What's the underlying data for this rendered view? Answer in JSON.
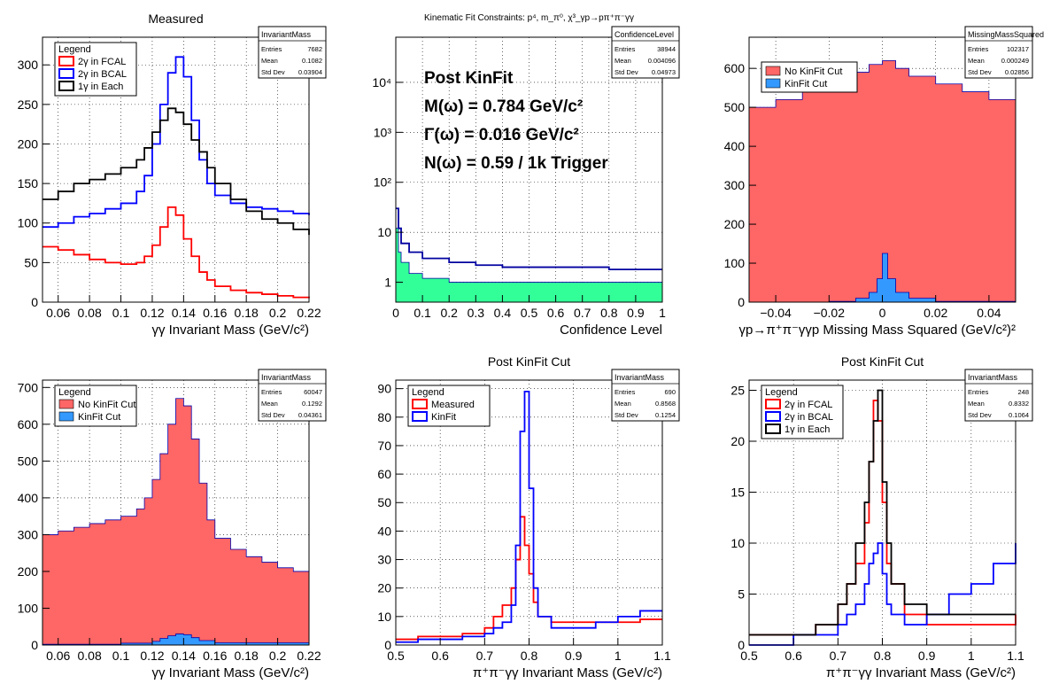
{
  "chart_data": [
    {
      "type": "histogram",
      "title": "Measured",
      "xlabel": "γγ Invariant Mass (GeV/c²)",
      "ylabel": "",
      "xlim": [
        0.05,
        0.22
      ],
      "ylim": [
        0,
        335
      ],
      "xticks": [
        "0.06",
        "0.08",
        "0.1",
        "0.12",
        "0.14",
        "0.16",
        "0.18",
        "0.2",
        "0.22"
      ],
      "yticks": [
        "0",
        "50",
        "100",
        "150",
        "200",
        "250",
        "300"
      ],
      "stats": {
        "name": "InvariantMass",
        "entries": "7682",
        "mean": "0.1082",
        "std": "0.03904"
      },
      "legend": {
        "title": "Legend",
        "position": "top-left"
      },
      "series": [
        {
          "name": "2γ in FCAL",
          "color": "#ff0000",
          "fill": false,
          "x": [
            0.05,
            0.06,
            0.07,
            0.08,
            0.09,
            0.1,
            0.11,
            0.115,
            0.12,
            0.125,
            0.13,
            0.135,
            0.14,
            0.145,
            0.15,
            0.155,
            0.16,
            0.17,
            0.18,
            0.19,
            0.2,
            0.21,
            0.22
          ],
          "y": [
            70,
            66,
            60,
            54,
            50,
            48,
            50,
            58,
            72,
            95,
            120,
            110,
            80,
            58,
            38,
            28,
            20,
            15,
            12,
            10,
            8,
            6,
            5
          ]
        },
        {
          "name": "2γ in BCAL",
          "color": "#0000ff",
          "fill": false,
          "x": [
            0.05,
            0.06,
            0.07,
            0.08,
            0.09,
            0.1,
            0.11,
            0.115,
            0.12,
            0.125,
            0.13,
            0.135,
            0.14,
            0.145,
            0.15,
            0.155,
            0.16,
            0.17,
            0.18,
            0.19,
            0.2,
            0.21,
            0.22
          ],
          "y": [
            95,
            100,
            108,
            112,
            118,
            125,
            140,
            160,
            200,
            250,
            290,
            310,
            285,
            230,
            180,
            150,
            135,
            125,
            120,
            118,
            115,
            112,
            110
          ]
        },
        {
          "name": "1γ in Each",
          "color": "#000000",
          "fill": false,
          "x": [
            0.05,
            0.06,
            0.07,
            0.08,
            0.09,
            0.1,
            0.11,
            0.115,
            0.12,
            0.125,
            0.13,
            0.135,
            0.14,
            0.145,
            0.15,
            0.155,
            0.16,
            0.17,
            0.18,
            0.19,
            0.2,
            0.21,
            0.22
          ],
          "y": [
            130,
            140,
            150,
            155,
            162,
            170,
            180,
            195,
            215,
            230,
            245,
            240,
            225,
            205,
            190,
            170,
            150,
            130,
            115,
            105,
            100,
            92,
            85
          ]
        }
      ]
    },
    {
      "type": "histogram",
      "title": "Kinematic Fit Constraints: p⁴, m_π⁰, χ³_γp→pπ⁺π⁻γγ",
      "xlabel": "Confidence Level",
      "ylabel": "",
      "logy": true,
      "xlim": [
        0,
        1
      ],
      "ylim": [
        0.4,
        80000
      ],
      "xticks": [
        "0",
        "0.1",
        "0.2",
        "0.3",
        "0.4",
        "0.5",
        "0.6",
        "0.7",
        "0.8",
        "0.9",
        "1"
      ],
      "yticks": [
        "1",
        "10",
        "10²",
        "10³",
        "10⁴"
      ],
      "stats": {
        "name": "ConfidenceLevel",
        "entries": "38944",
        "mean": "0.004096",
        "std": "0.04973"
      },
      "annotations": [
        "Post KinFit",
        "M(ω) = 0.784 GeV/c²",
        "Γ(ω) = 0.016 GeV/c²",
        "N(ω) = 0.59 / 1k Trigger"
      ],
      "series": [
        {
          "name": "",
          "color": "#0000a0",
          "fill": false,
          "x": [
            0,
            0.01,
            0.02,
            0.05,
            0.1,
            0.2,
            0.3,
            0.4,
            0.5,
            0.6,
            0.7,
            0.8,
            0.9,
            1.0
          ],
          "y": [
            30,
            12,
            6,
            4,
            3,
            2.5,
            2.2,
            2,
            2,
            2,
            2,
            1.8,
            1.8,
            1.8
          ]
        },
        {
          "name": "",
          "color": "#33ff99",
          "fill": true,
          "x": [
            0,
            0.01,
            0.02,
            0.05,
            0.1,
            0.2,
            0.3,
            0.4,
            0.5,
            0.6,
            0.7,
            0.8,
            0.9,
            1.0
          ],
          "y": [
            12,
            4,
            2.5,
            1.5,
            1.2,
            1,
            1,
            1,
            1,
            1,
            1,
            1,
            1,
            1
          ]
        }
      ]
    },
    {
      "type": "histogram",
      "title": "",
      "xlabel": "γp→π⁺π⁻γγp Missing Mass Squared (GeV/c²)²",
      "ylabel": "",
      "xlim": [
        -0.05,
        0.05
      ],
      "ylim": [
        0,
        680
      ],
      "xticks": [
        "−0.04",
        "−0.02",
        "0",
        "0.02",
        "0.04"
      ],
      "yticks": [
        "0",
        "100",
        "200",
        "300",
        "400",
        "500",
        "600"
      ],
      "stats": {
        "name": "MissingMassSquared",
        "entries": "102317",
        "mean": "0.000249",
        "std": "0.02856"
      },
      "legend": {
        "title": "",
        "position": "top-left"
      },
      "series": [
        {
          "name": "No KinFit Cut",
          "color": "#ff6666",
          "fill": true,
          "x": [
            -0.05,
            -0.04,
            -0.03,
            -0.02,
            -0.01,
            -0.005,
            0,
            0.005,
            0.01,
            0.02,
            0.03,
            0.04,
            0.05
          ],
          "y": [
            500,
            520,
            540,
            560,
            590,
            610,
            620,
            600,
            580,
            560,
            540,
            520,
            500
          ]
        },
        {
          "name": "KinFit Cut",
          "color": "#3399ff",
          "fill": true,
          "x": [
            -0.05,
            -0.02,
            -0.01,
            -0.005,
            -0.002,
            0,
            0.002,
            0.005,
            0.01,
            0.02,
            0.05
          ],
          "y": [
            0,
            2,
            10,
            25,
            60,
            125,
            60,
            25,
            10,
            2,
            0
          ]
        }
      ]
    },
    {
      "type": "histogram",
      "title": "",
      "xlabel": "γγ Invariant Mass (GeV/c²)",
      "ylabel": "",
      "xlim": [
        0.05,
        0.22
      ],
      "ylim": [
        0,
        720
      ],
      "xticks": [
        "0.06",
        "0.08",
        "0.1",
        "0.12",
        "0.14",
        "0.16",
        "0.18",
        "0.2",
        "0.22"
      ],
      "yticks": [
        "0",
        "100",
        "200",
        "300",
        "400",
        "500",
        "600",
        "700"
      ],
      "stats": {
        "name": "InvariantMass",
        "entries": "60047",
        "mean": "0.1292",
        "std": "0.04361"
      },
      "legend": {
        "title": "Legend",
        "position": "top-left"
      },
      "series": [
        {
          "name": "No KinFit Cut",
          "color": "#ff6666",
          "fill": true,
          "x": [
            0.05,
            0.06,
            0.07,
            0.08,
            0.09,
            0.1,
            0.11,
            0.115,
            0.12,
            0.125,
            0.13,
            0.135,
            0.14,
            0.145,
            0.15,
            0.155,
            0.16,
            0.17,
            0.18,
            0.19,
            0.2,
            0.21,
            0.22
          ],
          "y": [
            300,
            310,
            320,
            330,
            340,
            350,
            370,
            400,
            450,
            520,
            600,
            670,
            650,
            560,
            440,
            340,
            290,
            260,
            240,
            225,
            210,
            200,
            190
          ]
        },
        {
          "name": "KinFit Cut",
          "color": "#3399ff",
          "fill": true,
          "x": [
            0.05,
            0.1,
            0.12,
            0.125,
            0.13,
            0.135,
            0.14,
            0.145,
            0.15,
            0.16,
            0.22
          ],
          "y": [
            2,
            5,
            10,
            18,
            25,
            30,
            28,
            20,
            12,
            6,
            3
          ]
        }
      ]
    },
    {
      "type": "histogram",
      "title": "Post KinFit Cut",
      "xlabel": "π⁺π⁻γγ Invariant Mass (GeV/c²)",
      "ylabel": "",
      "xlim": [
        0.5,
        1.1
      ],
      "ylim": [
        0,
        93
      ],
      "xticks": [
        "0.5",
        "0.6",
        "0.7",
        "0.8",
        "0.9",
        "1",
        "1.1"
      ],
      "yticks": [
        "0",
        "10",
        "20",
        "30",
        "40",
        "50",
        "60",
        "70",
        "80",
        "90"
      ],
      "stats": {
        "name": "InvariantMass",
        "entries": "690",
        "mean": "0.8568",
        "std": "0.1254"
      },
      "legend": {
        "title": "Legend",
        "position": "top-left"
      },
      "series": [
        {
          "name": "Measured",
          "color": "#ff0000",
          "fill": false,
          "x": [
            0.5,
            0.55,
            0.6,
            0.65,
            0.7,
            0.72,
            0.74,
            0.76,
            0.77,
            0.78,
            0.79,
            0.8,
            0.81,
            0.82,
            0.85,
            0.9,
            0.95,
            1.0,
            1.05,
            1.1
          ],
          "y": [
            2,
            3,
            3,
            4,
            6,
            10,
            14,
            20,
            30,
            45,
            35,
            25,
            15,
            10,
            8,
            8,
            8,
            8,
            9,
            9
          ]
        },
        {
          "name": "KinFit",
          "color": "#0000ff",
          "fill": false,
          "x": [
            0.5,
            0.55,
            0.6,
            0.65,
            0.7,
            0.72,
            0.74,
            0.76,
            0.77,
            0.78,
            0.79,
            0.8,
            0.81,
            0.82,
            0.85,
            0.9,
            0.95,
            1.0,
            1.05,
            1.1
          ],
          "y": [
            1,
            2,
            2,
            3,
            4,
            6,
            8,
            14,
            35,
            75,
            89,
            55,
            20,
            10,
            6,
            6,
            8,
            10,
            12,
            12
          ]
        }
      ]
    },
    {
      "type": "histogram",
      "title": "Post KinFit Cut",
      "xlabel": "π⁺π⁻γγ Invariant Mass (GeV/c²)",
      "ylabel": "",
      "xlim": [
        0.5,
        1.1
      ],
      "ylim": [
        0,
        26
      ],
      "xticks": [
        "0.5",
        "0.6",
        "0.7",
        "0.8",
        "0.9",
        "1",
        "1.1"
      ],
      "yticks": [
        "0",
        "5",
        "10",
        "15",
        "20",
        "25"
      ],
      "stats": {
        "name": "InvariantMass",
        "entries": "248",
        "mean": "0.8332",
        "std": "0.1064"
      },
      "legend": {
        "title": "Legend",
        "position": "top-left"
      },
      "series": [
        {
          "name": "2γ in FCAL",
          "color": "#ff0000",
          "fill": false,
          "x": [
            0.5,
            0.55,
            0.6,
            0.65,
            0.7,
            0.72,
            0.74,
            0.76,
            0.77,
            0.78,
            0.79,
            0.8,
            0.81,
            0.82,
            0.85,
            0.9,
            0.95,
            1.0,
            1.05,
            1.1
          ],
          "y": [
            1,
            1,
            1,
            2,
            4,
            6,
            8,
            12,
            18,
            24,
            22,
            14,
            8,
            6,
            3,
            2,
            2,
            2,
            2,
            3
          ]
        },
        {
          "name": "2γ in BCAL",
          "color": "#0000ff",
          "fill": false,
          "x": [
            0.5,
            0.55,
            0.6,
            0.65,
            0.7,
            0.72,
            0.74,
            0.76,
            0.77,
            0.78,
            0.79,
            0.8,
            0.81,
            0.82,
            0.85,
            0.9,
            0.95,
            1.0,
            1.05,
            1.1
          ],
          "y": [
            0,
            0,
            1,
            1,
            2,
            3,
            4,
            6,
            8,
            9,
            10,
            7,
            4,
            3,
            2,
            3,
            5,
            6,
            8,
            10
          ]
        },
        {
          "name": "1γ in Each",
          "color": "#000000",
          "fill": false,
          "x": [
            0.5,
            0.55,
            0.6,
            0.65,
            0.7,
            0.72,
            0.74,
            0.76,
            0.77,
            0.78,
            0.79,
            0.8,
            0.81,
            0.82,
            0.85,
            0.9,
            0.95,
            1.0,
            1.05,
            1.1
          ],
          "y": [
            1,
            1,
            1,
            2,
            4,
            6,
            10,
            14,
            18,
            22,
            25,
            16,
            10,
            6,
            4,
            3,
            3,
            3,
            3,
            3
          ]
        }
      ]
    }
  ]
}
